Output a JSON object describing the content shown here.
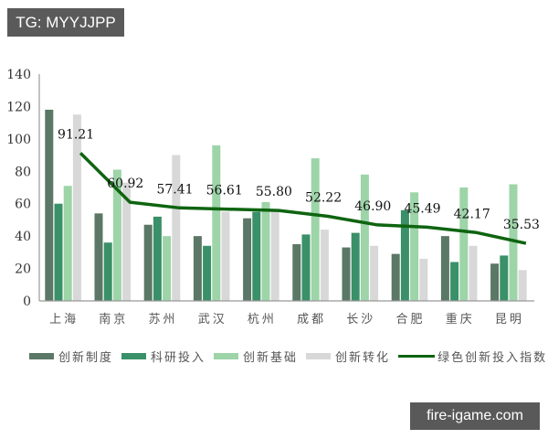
{
  "watermarks": {
    "top_left": "TG: MYYJJPP",
    "bottom_right": "fire-igame.com"
  },
  "colors": {
    "innovation_system": "#5b7766",
    "rd_input": "#3a9068",
    "innovation_base": "#9dd4a8",
    "innovation_transform": "#d8d8d8",
    "green_index_line": "#0e6410",
    "axis": "#999999"
  },
  "chart_data": {
    "type": "bar",
    "title": "",
    "xlabel": "",
    "ylabel": "",
    "ylim": [
      0,
      140
    ],
    "yticks": [
      0,
      20,
      40,
      60,
      80,
      100,
      120,
      140
    ],
    "grid": false,
    "legend_position": "bottom",
    "categories": [
      "上海",
      "南京",
      "苏州",
      "武汉",
      "杭州",
      "成都",
      "长沙",
      "合肥",
      "重庆",
      "昆明"
    ],
    "series": [
      {
        "name": "创新制度",
        "type": "bar",
        "values": [
          118,
          54,
          47,
          40,
          51,
          35,
          33,
          29,
          40,
          23
        ]
      },
      {
        "name": "科研投入",
        "type": "bar",
        "values": [
          60,
          36,
          52,
          34,
          55,
          41,
          42,
          56,
          24,
          28
        ]
      },
      {
        "name": "创新基础",
        "type": "bar",
        "values": [
          71,
          81,
          40,
          96,
          61,
          88,
          78,
          67,
          70,
          72
        ]
      },
      {
        "name": "创新转化",
        "type": "bar",
        "values": [
          115,
          73,
          90,
          55,
          56,
          44,
          34,
          26,
          34,
          19
        ]
      },
      {
        "name": "绿色创新投入指数",
        "type": "line",
        "values": [
          91.21,
          60.92,
          57.41,
          56.61,
          55.8,
          52.22,
          46.9,
          45.49,
          42.17,
          35.53
        ],
        "data_labels": [
          "91.21",
          "60.92",
          "57.41",
          "56.61",
          "55.80",
          "52.22",
          "46.90",
          "45.49",
          "42.17",
          "35.53"
        ]
      }
    ]
  },
  "legend": [
    {
      "label": "创新制度",
      "kind": "bar"
    },
    {
      "label": "科研投入",
      "kind": "bar"
    },
    {
      "label": "创新基础",
      "kind": "bar"
    },
    {
      "label": "创新转化",
      "kind": "bar"
    },
    {
      "label": "绿色创新投入指数",
      "kind": "line"
    }
  ]
}
